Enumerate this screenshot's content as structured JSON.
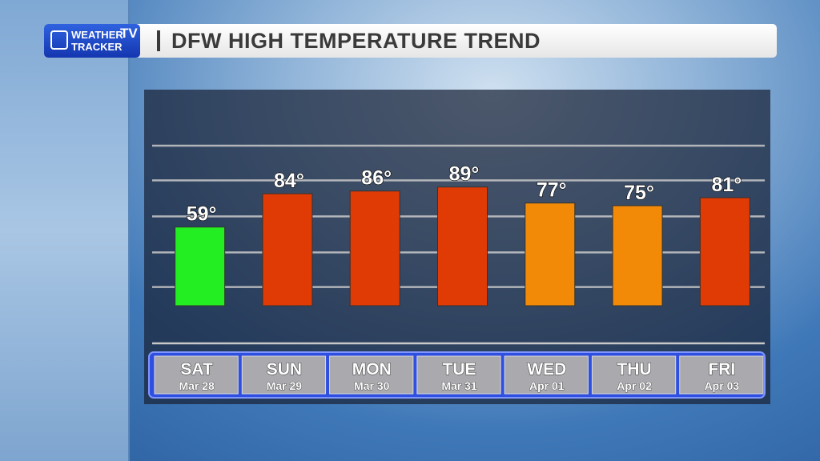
{
  "logo": {
    "line1": "WEATHER",
    "tv": "TV",
    "line2": "TRACKER"
  },
  "chart_data": {
    "type": "bar",
    "title": "DFW HIGH TEMPERATURE TREND",
    "categories": [
      "SAT",
      "SUN",
      "MON",
      "TUE",
      "WED",
      "THU",
      "FRI"
    ],
    "dates": [
      "Mar 28",
      "Mar 29",
      "Mar 30",
      "Mar 31",
      "Apr 01",
      "Apr 02",
      "Apr 03"
    ],
    "values": [
      59,
      84,
      86,
      89,
      77,
      75,
      81
    ],
    "value_labels": [
      "59°",
      "84°",
      "86°",
      "89°",
      "77°",
      "75°",
      "81°"
    ],
    "colors": [
      "#22ee22",
      "#e03a05",
      "#e03a05",
      "#e03a05",
      "#f28a08",
      "#f28a08",
      "#e03a05"
    ],
    "ylim": [
      -24,
      120
    ],
    "yticks": [
      14,
      40,
      67,
      94,
      120
    ],
    "grid": true
  }
}
